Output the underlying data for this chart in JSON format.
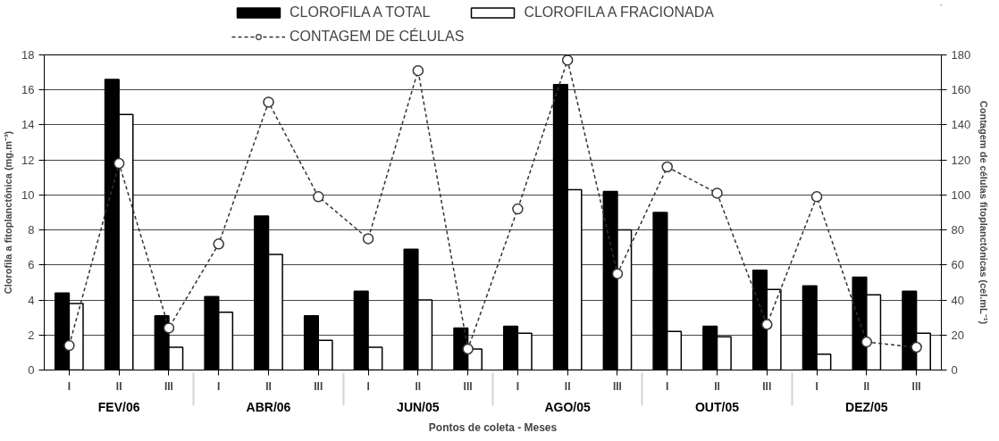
{
  "chart_data": {
    "type": "bar",
    "xlabel": "Pontos de coleta - Meses",
    "ylabel": "Clorofila a fitoplanctônica (mg.m⁻³)",
    "y2label": "Contagem de células fitoplanctônicas (cel.mL⁻¹)",
    "categories": [
      "I",
      "II",
      "III",
      "I",
      "II",
      "III",
      "I",
      "II",
      "III",
      "I",
      "II",
      "III",
      "I",
      "II",
      "III",
      "I",
      "II",
      "III"
    ],
    "annotations": [
      "FEV/06",
      "ABR/06",
      "JUN/05",
      "AGO/05",
      "OUT/05",
      "DEZ/05"
    ],
    "series": [
      {
        "name": "CLOROFILA A TOTAL",
        "color": "#000000",
        "values": [
          4.4,
          16.6,
          3.1,
          4.2,
          8.8,
          3.1,
          4.5,
          6.9,
          2.4,
          2.5,
          16.3,
          10.2,
          9.0,
          2.5,
          5.7,
          4.8,
          5.3,
          4.5
        ]
      },
      {
        "name": "CLOROFILA A FRACIONADA",
        "color": "#ffffff",
        "values": [
          3.8,
          14.6,
          1.3,
          3.3,
          6.6,
          1.7,
          1.3,
          4.0,
          1.2,
          2.1,
          10.3,
          8.0,
          2.2,
          1.9,
          4.6,
          0.9,
          4.3,
          2.1
        ]
      },
      {
        "name": "CONTAGEM DE CÉLULAS",
        "type": "line",
        "axis": "y2",
        "color": "#333333",
        "line_style": "dashed",
        "marker": "circle",
        "values": [
          14,
          118,
          24,
          72,
          153,
          99,
          75,
          171,
          12,
          92,
          177,
          55,
          116,
          101,
          26,
          99,
          16,
          13
        ]
      }
    ],
    "ylim": [
      0,
      18
    ],
    "yticks": [
      0,
      2,
      4,
      6,
      8,
      10,
      12,
      14,
      16,
      18
    ],
    "y2lim": [
      0,
      180
    ],
    "y2ticks": [
      0,
      20,
      40,
      60,
      80,
      100,
      120,
      140,
      160,
      180
    ],
    "grid": "y",
    "legend": "top"
  }
}
